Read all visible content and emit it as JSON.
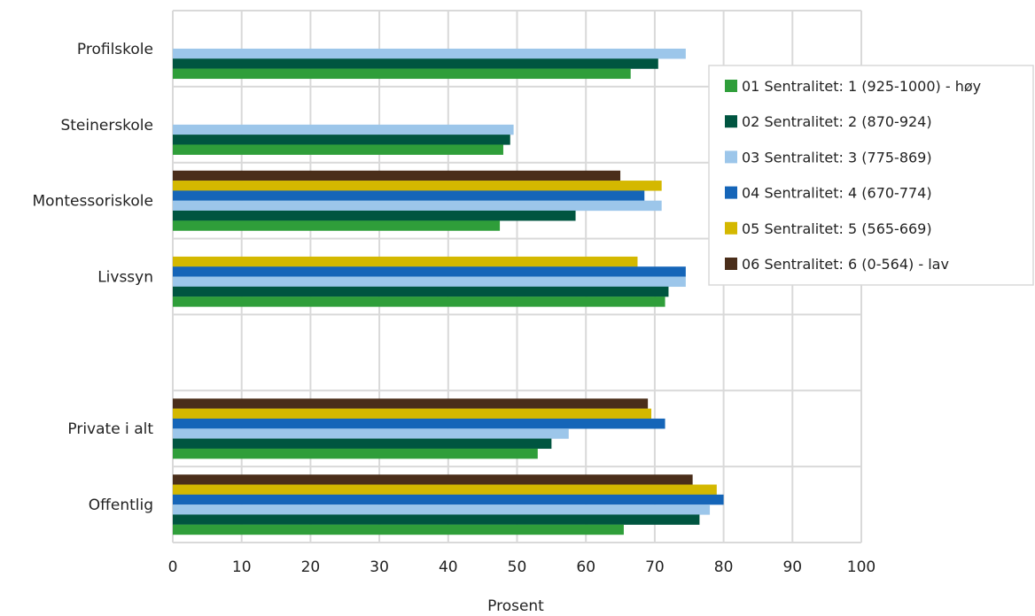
{
  "chart_data": {
    "type": "bar",
    "orientation": "horizontal",
    "xlabel": "Prosent",
    "xlim": [
      0,
      100
    ],
    "xticks": [
      "0",
      "10",
      "20",
      "30",
      "40",
      "50",
      "60",
      "70",
      "80",
      "90",
      "100"
    ],
    "grid": true,
    "legend_position": "right",
    "categories": [
      "Profilskole",
      "Steinerskole",
      "Montessoriskole",
      "Livssyn",
      "",
      "Private i alt",
      "Offentlig"
    ],
    "series": [
      {
        "name": "06 Sentralitet: 6 (0-564) - lav",
        "color": "#4a2e1a",
        "values": [
          null,
          null,
          65,
          null,
          null,
          69,
          75.5
        ]
      },
      {
        "name": "05 Sentralitet: 5 (565-669)",
        "color": "#d4b800",
        "values": [
          null,
          null,
          71,
          67.5,
          null,
          69.5,
          79
        ]
      },
      {
        "name": "04 Sentralitet: 4 (670-774)",
        "color": "#1565b8",
        "values": [
          null,
          null,
          68.5,
          74.5,
          null,
          71.5,
          80
        ]
      },
      {
        "name": "03 Sentralitet: 3 (775-869)",
        "color": "#9cc6ea",
        "values": [
          74.5,
          49.5,
          71,
          74.5,
          null,
          57.5,
          78
        ]
      },
      {
        "name": "02 Sentralitet: 2 (870-924)",
        "color": "#005540",
        "values": [
          70.5,
          49,
          58.5,
          72,
          null,
          55,
          76.5
        ]
      },
      {
        "name": "01 Sentralitet: 1 (925-1000) - høy",
        "color": "#2f9e3a",
        "values": [
          66.5,
          48,
          47.5,
          71.5,
          null,
          53,
          65.5
        ]
      }
    ]
  }
}
